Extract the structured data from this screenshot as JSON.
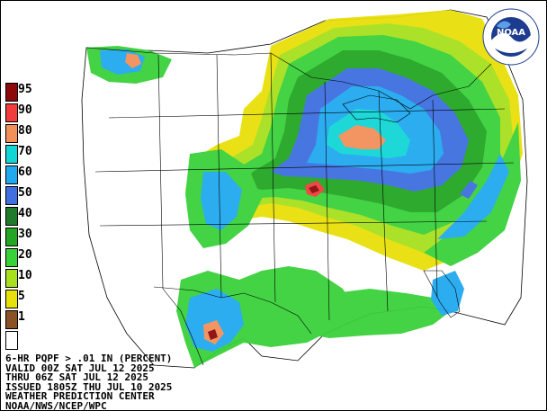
{
  "legend": {
    "items": [
      {
        "label": "95",
        "color": "#8c0a0a"
      },
      {
        "label": "90",
        "color": "#f23d3d"
      },
      {
        "label": "80",
        "color": "#f2905a"
      },
      {
        "label": "70",
        "color": "#12d6d6"
      },
      {
        "label": "60",
        "color": "#21a9f0"
      },
      {
        "label": "50",
        "color": "#3f6fe0"
      },
      {
        "label": "40",
        "color": "#1f7a2a"
      },
      {
        "label": "30",
        "color": "#23a623"
      },
      {
        "label": "20",
        "color": "#39d13a"
      },
      {
        "label": "10",
        "color": "#a8e01e"
      },
      {
        "label": "5",
        "color": "#e8e00a"
      },
      {
        "label": "1",
        "color": "#8a5226"
      },
      {
        "label": "",
        "color": "#ffffff"
      }
    ]
  },
  "footer": {
    "line1": "6-HR PQPF > .01 IN (PERCENT)",
    "line2": "VALID 00Z SAT JUL 12 2025",
    "line3": "THRU 06Z SAT JUL 12 2025",
    "line4": "ISSUED 1805Z THU JUL 10 2025",
    "line5": "WEATHER PREDICTION CENTER",
    "line6": "NOAA/NWS/NCEP/WPC"
  },
  "logo": {
    "text": "NOAA",
    "ring_color": "#1d3c8f"
  }
}
